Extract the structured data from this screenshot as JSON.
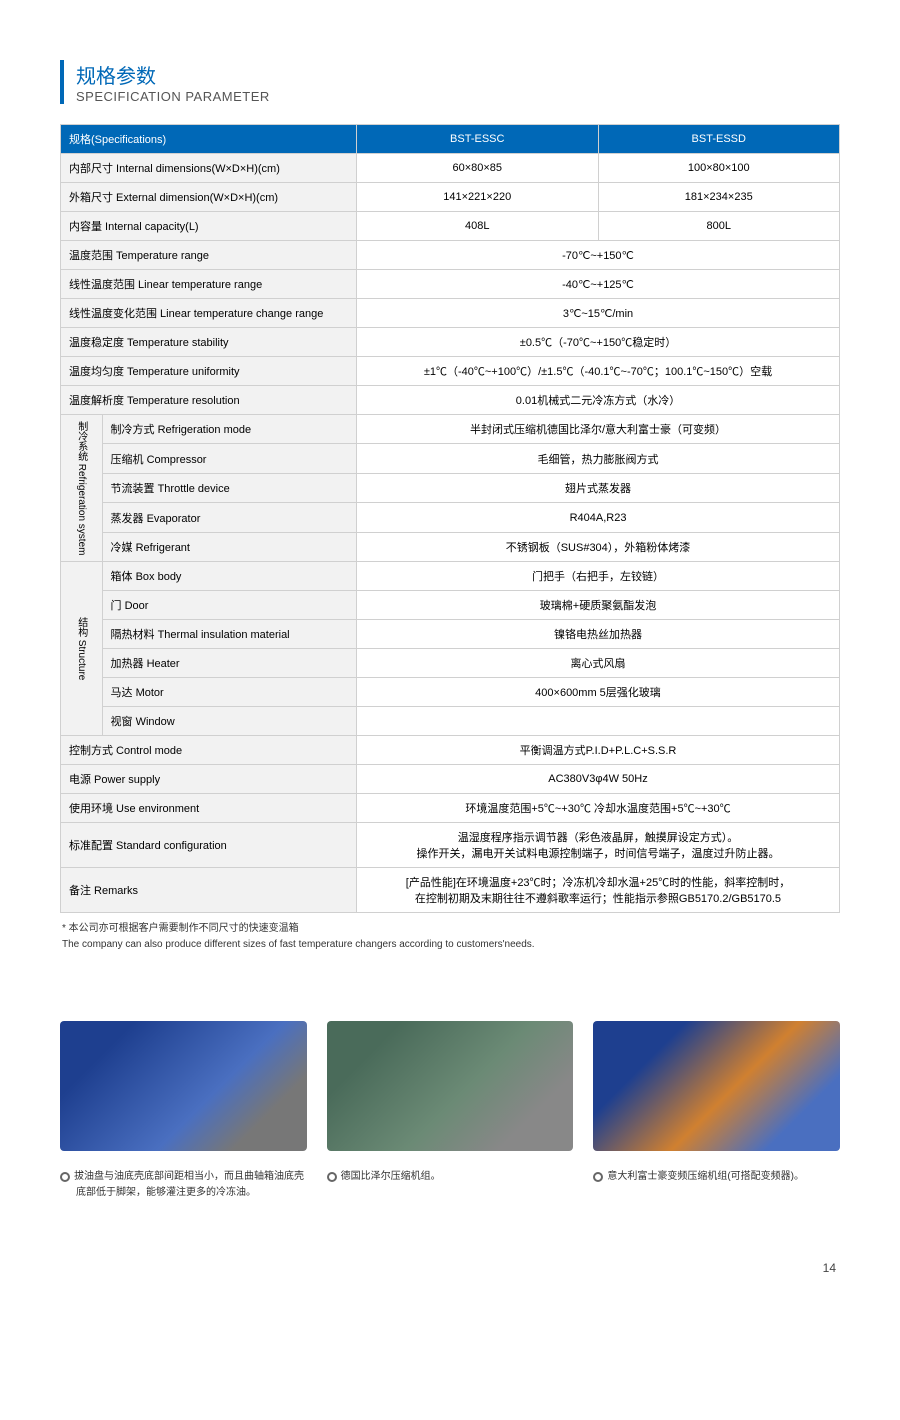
{
  "header": {
    "title_cn": "规格参数",
    "title_en": "SPECIFICATION PARAMETER"
  },
  "table": {
    "header_label": "规格(Specifications)",
    "models": [
      "BST-ESSC",
      "BST-ESSD"
    ],
    "simple_rows": [
      {
        "label": "内部尺寸 Internal dimensions(W×D×H)(cm)",
        "vals": [
          "60×80×85",
          "100×80×100"
        ]
      },
      {
        "label": "外箱尺寸 External dimension(W×D×H)(cm)",
        "vals": [
          "141×221×220",
          "181×234×235"
        ]
      },
      {
        "label": "内容量 Internal capacity(L)",
        "vals": [
          "408L",
          "800L"
        ]
      },
      {
        "label": "温度范围 Temperature range",
        "span": "-70℃~+150℃"
      },
      {
        "label": "线性温度范围 Linear temperature range",
        "span": "-40℃~+125℃"
      },
      {
        "label": "线性温度变化范围 Linear temperature change range",
        "span": "3℃~15℃/min"
      },
      {
        "label": "温度稳定度 Temperature stability",
        "span": "±0.5℃（-70℃~+150℃稳定时）"
      },
      {
        "label": "温度均匀度 Temperature uniformity",
        "span": "±1℃（-40℃~+100℃）/±1.5℃（-40.1℃~-70℃；100.1℃~150℃）空载"
      },
      {
        "label": "温度解析度 Temperature resolution",
        "span": "0.01机械式二元冷冻方式（水冷）"
      }
    ],
    "groups": [
      {
        "name": "制冷系统 Refrigeration system",
        "rows": [
          {
            "label": "制冷方式 Refrigeration mode",
            "span": "半封闭式压缩机德国比泽尔/意大利富士豪（可变频）"
          },
          {
            "label": "压缩机 Compressor",
            "span": "毛细管，热力膨胀阀方式"
          },
          {
            "label": "节流装置 Throttle device",
            "span": "翅片式蒸发器"
          },
          {
            "label": "蒸发器 Evaporator",
            "span": "R404A,R23"
          },
          {
            "label": "冷媒 Refrigerant",
            "span": "不锈钢板（SUS#304），外箱粉体烤漆"
          }
        ]
      },
      {
        "name": "结构 Structure",
        "rows": [
          {
            "label": "箱体 Box body",
            "span": "门把手（右把手，左铰链）"
          },
          {
            "label": "门 Door",
            "span": "玻璃棉+硬质聚氨酯发泡"
          },
          {
            "label": "隔热材料 Thermal insulation material",
            "span": "镍铬电热丝加热器"
          },
          {
            "label": "加热器 Heater",
            "span": "离心式风扇"
          },
          {
            "label": "马达 Motor",
            "span": "400×600mm 5层强化玻璃"
          },
          {
            "label": "视窗 Window",
            "span": ""
          }
        ]
      }
    ],
    "tail_rows": [
      {
        "label": "控制方式 Control mode",
        "span": "平衡调温方式P.I.D+P.L.C+S.S.R"
      },
      {
        "label": "电源 Power supply",
        "span": "AC380V3φ4W 50Hz"
      },
      {
        "label": "使用环境 Use environment",
        "span": "环境温度范围+5℃~+30℃  冷却水温度范围+5℃~+30℃"
      },
      {
        "label": "标准配置 Standard configuration",
        "span": "温湿度程序指示调节器（彩色液晶屏，触摸屏设定方式）。\n操作开关，漏电开关试料电源控制端子，时间信号端子，温度过升防止器。",
        "tall": true
      },
      {
        "label": "备注 Remarks",
        "span": "[产品性能]在环境温度+23℃时；冷冻机冷却水温+25℃时的性能，斜率控制时，\n在控制初期及末期往往不遵斜歌率运行；性能指示参照GB5170.2/GB5170.5",
        "tall": true
      }
    ],
    "footnote_cn": "* 本公司亦可根据客户需要制作不同尺寸的快速变温箱",
    "footnote_en": "The company can also produce different sizes of fast temperature changers according to customers'needs."
  },
  "images": [
    {
      "caption_lines": [
        "拔油盘与油底壳底部间距相当小，而且曲轴箱油底壳",
        "底部低于脚架，能够灌注更多的冷冻油。"
      ],
      "colors": "#2a4d9b"
    },
    {
      "caption_lines": [
        "德国比泽尔压缩机组。"
      ],
      "colors": "#5a7560"
    },
    {
      "caption_lines": [
        "意大利富士豪变频压缩机组(可搭配变频器)。"
      ],
      "colors": "#2a4d9b"
    }
  ],
  "page_number": "14"
}
